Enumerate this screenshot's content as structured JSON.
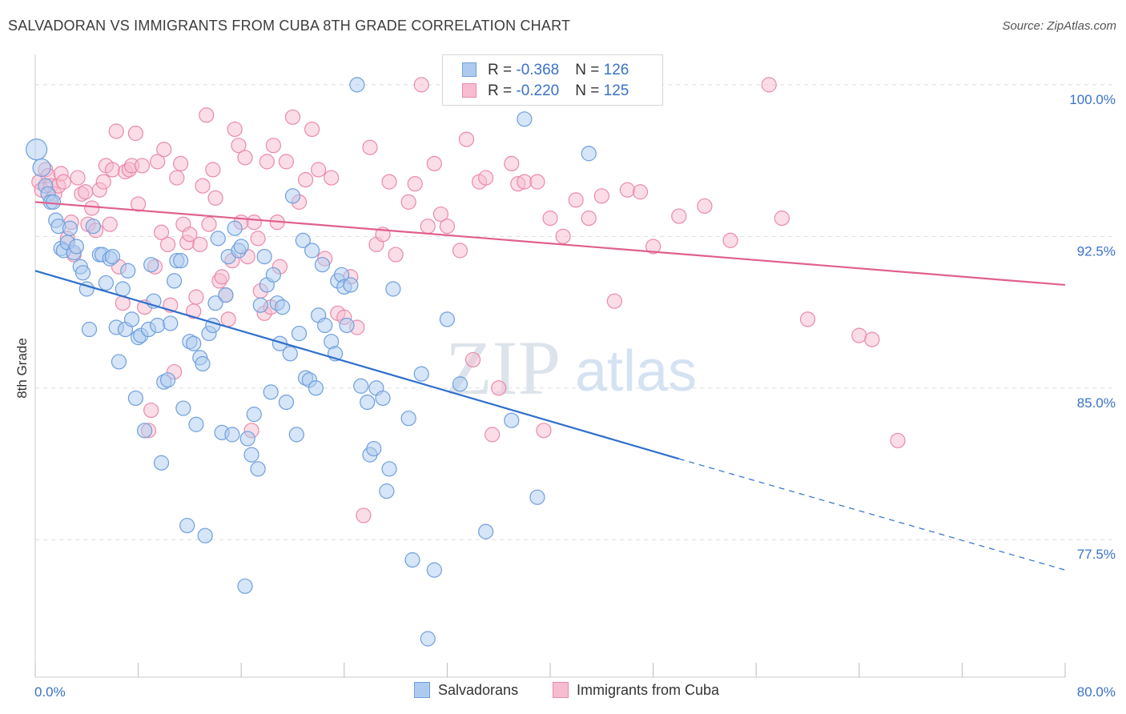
{
  "title": "SALVADORAN VS IMMIGRANTS FROM CUBA 8TH GRADE CORRELATION CHART",
  "source": "Source: ZipAtlas.com",
  "watermark": {
    "zip": "ZIP",
    "atlas": "atlas"
  },
  "legend": {
    "rows": [
      {
        "r_label": "R = ",
        "r_value": "-0.368",
        "n_label": "N = ",
        "n_value": "126"
      },
      {
        "r_label": "R = ",
        "r_value": "-0.220",
        "n_label": "N = ",
        "n_value": "125"
      }
    ]
  },
  "bottom_legend": [
    "Salvadorans",
    "Immigrants from Cuba"
  ],
  "colors": {
    "blue_fill": "#aecbef",
    "blue_stroke": "#6f9fdc",
    "blue_line": "#2f6fcc",
    "pink_fill": "#f7bcd0",
    "pink_stroke": "#e98aab",
    "pink_line": "#e0608d",
    "tick_text": "#3a72c8",
    "grid": "#dddddd"
  },
  "chart_data": {
    "type": "scatter",
    "title": "SALVADORAN VS IMMIGRANTS FROM CUBA 8TH GRADE CORRELATION CHART",
    "xlabel": "",
    "ylabel": "8th Grade",
    "xlim": [
      0,
      80
    ],
    "ylim": [
      70.7,
      101.5
    ],
    "x_tick_labels": [
      "0.0%",
      "80.0%"
    ],
    "y_ticks": [
      77.5,
      85.0,
      92.5,
      100.0
    ],
    "y_tick_labels": [
      "77.5%",
      "85.0%",
      "92.5%",
      "100.0%"
    ],
    "grid": true,
    "series": [
      {
        "name": "Salvadorans",
        "r": -0.368,
        "n": 126,
        "trend": {
          "x0": 0,
          "y0": 90.8,
          "x1": 50,
          "y1": 81.5,
          "dash_to_x": 80,
          "dash_to_y": 76.0
        },
        "points": [
          [
            0.1,
            96.8
          ],
          [
            0.5,
            95.9
          ],
          [
            0.8,
            95.0
          ],
          [
            1.0,
            94.6
          ],
          [
            1.2,
            94.2
          ],
          [
            1.4,
            94.2
          ],
          [
            1.6,
            93.3
          ],
          [
            1.8,
            93.0
          ],
          [
            2.0,
            91.9
          ],
          [
            2.2,
            91.8
          ],
          [
            2.5,
            92.2
          ],
          [
            2.7,
            92.9
          ],
          [
            3.0,
            91.7
          ],
          [
            3.2,
            92.0
          ],
          [
            3.5,
            91.0
          ],
          [
            3.7,
            90.7
          ],
          [
            4.0,
            89.9
          ],
          [
            4.2,
            87.9
          ],
          [
            4.5,
            93.0
          ],
          [
            5.0,
            91.6
          ],
          [
            5.2,
            91.6
          ],
          [
            5.5,
            90.2
          ],
          [
            5.8,
            91.4
          ],
          [
            6.0,
            91.5
          ],
          [
            6.3,
            88.0
          ],
          [
            6.5,
            86.3
          ],
          [
            6.8,
            89.9
          ],
          [
            7.0,
            87.9
          ],
          [
            7.2,
            90.8
          ],
          [
            7.5,
            88.4
          ],
          [
            7.8,
            84.5
          ],
          [
            8.0,
            87.5
          ],
          [
            8.2,
            87.6
          ],
          [
            8.5,
            82.9
          ],
          [
            8.8,
            87.9
          ],
          [
            9.0,
            91.1
          ],
          [
            9.2,
            89.3
          ],
          [
            9.5,
            88.1
          ],
          [
            9.8,
            81.3
          ],
          [
            10.0,
            85.3
          ],
          [
            10.3,
            85.4
          ],
          [
            10.5,
            88.2
          ],
          [
            10.8,
            90.3
          ],
          [
            11.0,
            91.3
          ],
          [
            11.3,
            91.3
          ],
          [
            11.5,
            84.0
          ],
          [
            11.8,
            78.2
          ],
          [
            12.0,
            87.3
          ],
          [
            12.3,
            87.2
          ],
          [
            12.5,
            83.2
          ],
          [
            12.8,
            86.5
          ],
          [
            13.0,
            86.2
          ],
          [
            13.2,
            77.7
          ],
          [
            13.5,
            87.7
          ],
          [
            13.8,
            88.1
          ],
          [
            14.0,
            89.2
          ],
          [
            14.2,
            92.4
          ],
          [
            14.5,
            82.8
          ],
          [
            14.8,
            89.6
          ],
          [
            15.0,
            91.5
          ],
          [
            15.3,
            82.7
          ],
          [
            15.5,
            92.9
          ],
          [
            15.8,
            91.8
          ],
          [
            16.0,
            92.0
          ],
          [
            16.3,
            75.2
          ],
          [
            16.5,
            82.5
          ],
          [
            16.8,
            81.7
          ],
          [
            17.0,
            83.7
          ],
          [
            17.3,
            81.0
          ],
          [
            17.5,
            89.1
          ],
          [
            17.8,
            91.5
          ],
          [
            18.0,
            90.1
          ],
          [
            18.3,
            84.8
          ],
          [
            18.5,
            90.6
          ],
          [
            18.8,
            89.2
          ],
          [
            19.0,
            87.2
          ],
          [
            19.2,
            89.0
          ],
          [
            19.5,
            84.3
          ],
          [
            19.8,
            86.7
          ],
          [
            20.0,
            94.5
          ],
          [
            20.3,
            82.7
          ],
          [
            20.5,
            87.7
          ],
          [
            20.8,
            92.3
          ],
          [
            21.0,
            85.5
          ],
          [
            21.3,
            85.4
          ],
          [
            21.5,
            91.8
          ],
          [
            21.8,
            85.0
          ],
          [
            22.0,
            88.6
          ],
          [
            22.3,
            91.1
          ],
          [
            22.5,
            88.1
          ],
          [
            23.0,
            87.3
          ],
          [
            23.3,
            86.7
          ],
          [
            23.5,
            90.3
          ],
          [
            23.8,
            90.6
          ],
          [
            24.0,
            90.0
          ],
          [
            24.2,
            88.1
          ],
          [
            24.5,
            90.1
          ],
          [
            25.0,
            100.0
          ],
          [
            25.3,
            85.1
          ],
          [
            25.8,
            84.3
          ],
          [
            26.0,
            81.7
          ],
          [
            26.3,
            82.0
          ],
          [
            26.5,
            85.0
          ],
          [
            27.0,
            84.5
          ],
          [
            27.3,
            79.9
          ],
          [
            27.5,
            81.0
          ],
          [
            27.8,
            89.9
          ],
          [
            29.0,
            83.5
          ],
          [
            29.3,
            76.5
          ],
          [
            30.0,
            85.7
          ],
          [
            30.5,
            72.6
          ],
          [
            31.0,
            76.0
          ],
          [
            32.0,
            88.4
          ],
          [
            33.0,
            85.2
          ],
          [
            35.0,
            77.9
          ],
          [
            37.0,
            83.4
          ],
          [
            38.0,
            98.3
          ],
          [
            39.0,
            79.6
          ],
          [
            43.0,
            96.6
          ]
        ]
      },
      {
        "name": "Immigrants from Cuba",
        "r": -0.22,
        "n": 125,
        "trend": {
          "x0": 0,
          "y0": 94.2,
          "x1": 80,
          "y1": 90.1
        },
        "points": [
          [
            0.3,
            95.2
          ],
          [
            0.5,
            94.8
          ],
          [
            0.8,
            95.8
          ],
          [
            1.0,
            95.5
          ],
          [
            1.2,
            95.0
          ],
          [
            1.5,
            94.6
          ],
          [
            1.8,
            95.0
          ],
          [
            2.0,
            95.6
          ],
          [
            2.2,
            95.2
          ],
          [
            2.5,
            92.4
          ],
          [
            2.8,
            93.2
          ],
          [
            3.0,
            91.6
          ],
          [
            3.3,
            95.4
          ],
          [
            3.6,
            94.6
          ],
          [
            3.9,
            94.7
          ],
          [
            4.1,
            93.1
          ],
          [
            4.4,
            93.9
          ],
          [
            4.7,
            92.8
          ],
          [
            5.0,
            94.8
          ],
          [
            5.3,
            95.2
          ],
          [
            5.5,
            96.0
          ],
          [
            5.8,
            93.1
          ],
          [
            6.0,
            95.8
          ],
          [
            6.3,
            97.7
          ],
          [
            6.5,
            91.0
          ],
          [
            6.8,
            89.2
          ],
          [
            7.0,
            95.7
          ],
          [
            7.3,
            95.8
          ],
          [
            7.5,
            96.0
          ],
          [
            7.8,
            97.6
          ],
          [
            8.0,
            94.1
          ],
          [
            8.3,
            96.0
          ],
          [
            8.5,
            89.0
          ],
          [
            8.8,
            82.9
          ],
          [
            9.0,
            83.9
          ],
          [
            9.3,
            91.0
          ],
          [
            9.5,
            96.2
          ],
          [
            9.8,
            92.7
          ],
          [
            10.0,
            96.8
          ],
          [
            10.3,
            92.1
          ],
          [
            10.5,
            89.1
          ],
          [
            10.8,
            85.8
          ],
          [
            11.0,
            95.4
          ],
          [
            11.3,
            96.1
          ],
          [
            11.5,
            93.1
          ],
          [
            11.8,
            92.2
          ],
          [
            12.0,
            92.6
          ],
          [
            12.3,
            88.8
          ],
          [
            12.5,
            89.5
          ],
          [
            12.8,
            92.1
          ],
          [
            13.0,
            95.0
          ],
          [
            13.3,
            98.5
          ],
          [
            13.5,
            93.1
          ],
          [
            13.8,
            95.8
          ],
          [
            14.0,
            94.4
          ],
          [
            14.3,
            90.3
          ],
          [
            14.5,
            90.5
          ],
          [
            14.8,
            89.6
          ],
          [
            15.0,
            88.4
          ],
          [
            15.3,
            91.3
          ],
          [
            15.5,
            97.8
          ],
          [
            15.8,
            97.0
          ],
          [
            16.0,
            93.2
          ],
          [
            16.3,
            96.4
          ],
          [
            16.5,
            91.5
          ],
          [
            16.8,
            82.9
          ],
          [
            17.0,
            93.2
          ],
          [
            17.3,
            92.4
          ],
          [
            17.5,
            89.8
          ],
          [
            17.8,
            88.7
          ],
          [
            18.0,
            96.2
          ],
          [
            18.3,
            89.0
          ],
          [
            18.5,
            97.0
          ],
          [
            18.8,
            93.2
          ],
          [
            19.0,
            91.0
          ],
          [
            19.5,
            96.2
          ],
          [
            20.0,
            98.4
          ],
          [
            20.5,
            94.2
          ],
          [
            21.0,
            95.3
          ],
          [
            21.5,
            97.8
          ],
          [
            22.0,
            95.8
          ],
          [
            22.5,
            91.4
          ],
          [
            23.0,
            95.4
          ],
          [
            23.5,
            88.7
          ],
          [
            24.0,
            88.5
          ],
          [
            24.5,
            90.5
          ],
          [
            25.0,
            88.0
          ],
          [
            25.5,
            78.7
          ],
          [
            26.0,
            96.9
          ],
          [
            26.5,
            92.1
          ],
          [
            27.0,
            92.6
          ],
          [
            27.5,
            95.2
          ],
          [
            28.0,
            91.6
          ],
          [
            29.0,
            94.2
          ],
          [
            29.5,
            95.1
          ],
          [
            30.0,
            100.0
          ],
          [
            30.5,
            93.0
          ],
          [
            31.0,
            96.1
          ],
          [
            31.5,
            93.6
          ],
          [
            32.0,
            93.0
          ],
          [
            33.0,
            91.8
          ],
          [
            33.5,
            97.3
          ],
          [
            34.0,
            86.4
          ],
          [
            34.5,
            95.2
          ],
          [
            35.0,
            95.4
          ],
          [
            35.5,
            82.7
          ],
          [
            36.0,
            85.0
          ],
          [
            37.0,
            96.1
          ],
          [
            37.5,
            95.1
          ],
          [
            38.0,
            95.2
          ],
          [
            39.0,
            95.2
          ],
          [
            39.5,
            82.9
          ],
          [
            40.0,
            93.4
          ],
          [
            41.0,
            92.5
          ],
          [
            42.0,
            94.3
          ],
          [
            43.0,
            93.4
          ],
          [
            44.0,
            94.5
          ],
          [
            45.0,
            89.3
          ],
          [
            46.0,
            94.8
          ],
          [
            47.0,
            94.7
          ],
          [
            48.0,
            92.0
          ],
          [
            50.0,
            93.5
          ],
          [
            52.0,
            94.0
          ],
          [
            54.0,
            92.3
          ],
          [
            57.0,
            100.0
          ],
          [
            58.0,
            93.4
          ],
          [
            60.0,
            88.4
          ],
          [
            64.0,
            87.6
          ],
          [
            65.0,
            87.4
          ],
          [
            67.0,
            82.4
          ]
        ]
      }
    ]
  }
}
